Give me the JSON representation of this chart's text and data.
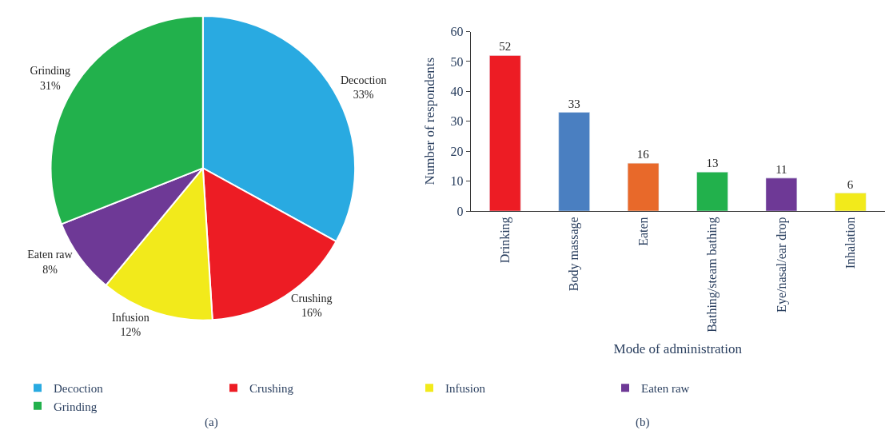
{
  "chart_data": [
    {
      "type": "pie",
      "categories": [
        "Decoction",
        "Crushing",
        "Infusion",
        "Eaten raw",
        "Grinding"
      ],
      "values": [
        33,
        16,
        12,
        8,
        31
      ],
      "colors": [
        "#29aae1",
        "#ed1c24",
        "#f2ea1b",
        "#6e3996",
        "#22b14c"
      ],
      "legend": "bottom",
      "value_labels": [
        "33%",
        "16%",
        "12%",
        "8%",
        "31%"
      ],
      "annotations": [
        "(a)"
      ]
    },
    {
      "type": "bar",
      "categories": [
        "Drinking",
        "Body massage",
        "Eaten",
        "Bathing/steam bathing",
        "Eye/nasal/ear drop",
        "Inhalation"
      ],
      "values": [
        52,
        33,
        16,
        13,
        11,
        6
      ],
      "colors": [
        "#ed1c24",
        "#4a7fc1",
        "#e8692a",
        "#22b14c",
        "#6e3996",
        "#f2ea1b"
      ],
      "xlabel": "Mode of administration",
      "ylabel": "Number of respondents",
      "ylim": [
        0,
        60
      ],
      "yticks": [
        0,
        10,
        20,
        30,
        40,
        50,
        60
      ],
      "data_labels": true,
      "annotations": [
        "(b)"
      ]
    }
  ]
}
